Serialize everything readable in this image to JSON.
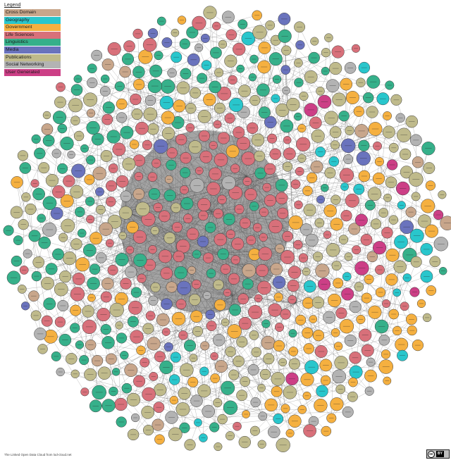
{
  "legend": {
    "title": "Legend",
    "items": [
      {
        "label": "Cross Domain",
        "color": "#c8a68b"
      },
      {
        "label": "Geography",
        "color": "#29c6cc"
      },
      {
        "label": "Government",
        "color": "#f5b040"
      },
      {
        "label": "Life Sciences",
        "color": "#d8707a"
      },
      {
        "label": "Linguistics",
        "color": "#36b08a"
      },
      {
        "label": "Media",
        "color": "#6a73bd"
      },
      {
        "label": "Publications",
        "color": "#bfba8b"
      },
      {
        "label": "Social Networking",
        "color": "#b3b3b3"
      },
      {
        "label": "User Generated",
        "color": "#cc3f86"
      }
    ]
  },
  "footer": {
    "credit": "The Linked Open Data Cloud from lod-cloud.net"
  },
  "license_badge": {
    "symbol": "cc",
    "by": "BY"
  }
}
